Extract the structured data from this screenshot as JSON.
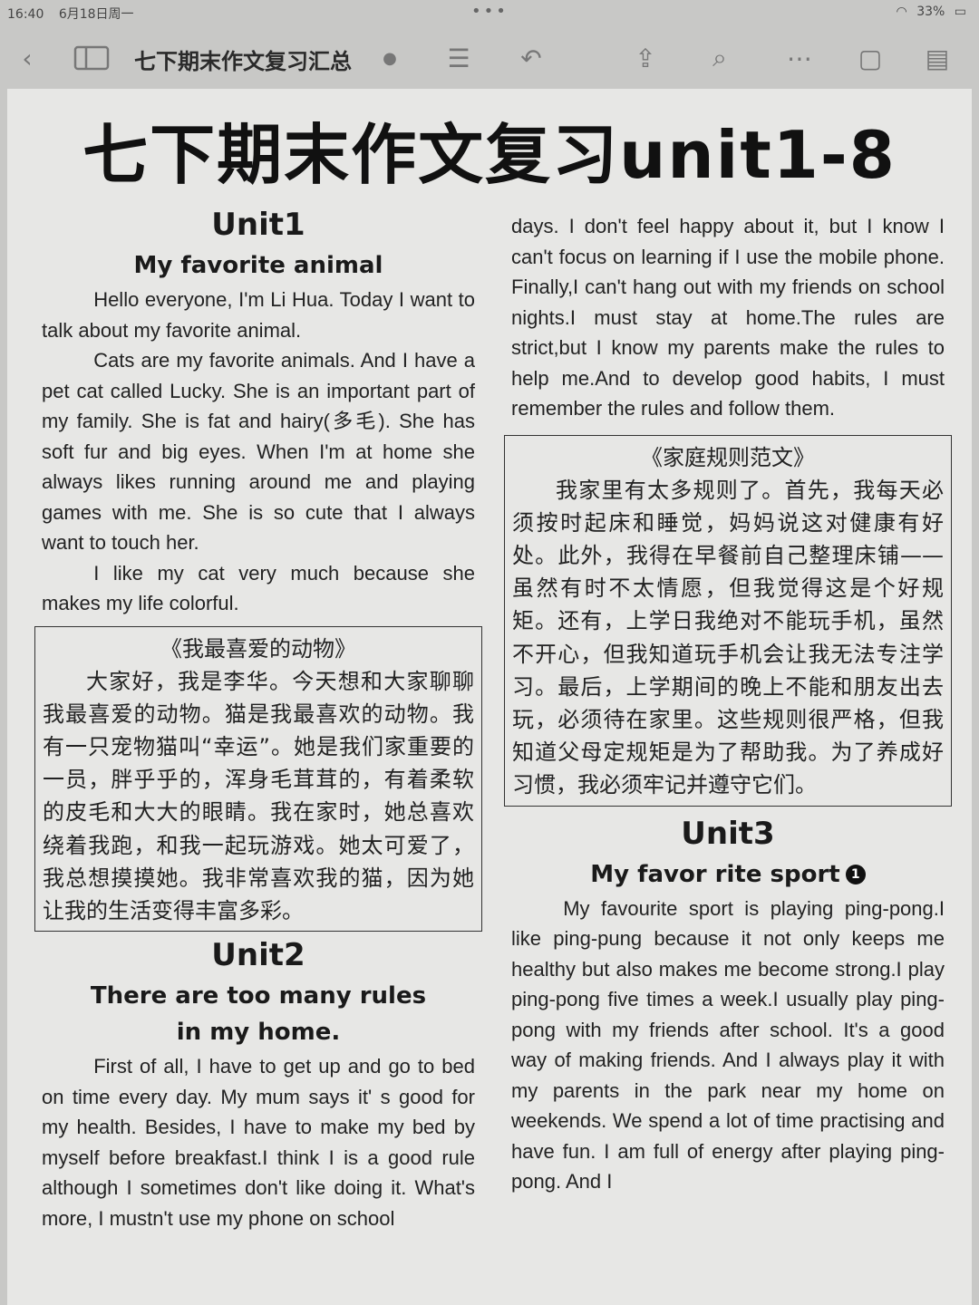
{
  "status_bar": {
    "time": "16:40",
    "date": "6月18日周一",
    "battery": "33%"
  },
  "toolbar": {
    "doc_title": "七下期末作文复习汇总",
    "icons": [
      "back-icon",
      "sidebar-icon",
      "list-icon",
      "undo-icon",
      "share-icon",
      "search-icon",
      "more-icon",
      "pages-icon",
      "notes-icon"
    ]
  },
  "page": {
    "main_title": "七下期末作文复习unit1-8",
    "unit1": {
      "heading": "Unit1",
      "title": "My favorite animal",
      "paragraphs": [
        "Hello everyone, I'm Li Hua. Today I want to talk about my favorite animal.",
        "Cats are my favorite animals. And I have a pet cat called Lucky. She is an important part of my family. She is fat and hairy(多毛). She has soft fur and big eyes. When I'm at home she always likes running around me and playing games with me. She is so cute that I always want to touch her.",
        "I like my cat very much because she makes my life colorful."
      ],
      "zh_title": "《我最喜爱的动物》",
      "zh_text": "大家好，我是李华。今天想和大家聊聊我最喜爱的动物。猫是我最喜欢的动物。我有一只宠物猫叫“幸运”。她是我们家重要的一员，胖乎乎的，浑身毛茸茸的，有着柔软的皮毛和大大的眼睛。我在家时，她总喜欢绕着我跑，和我一起玩游戏。她太可爱了，我总想摸摸她。我非常喜欢我的猫，因为她让我的生活变得丰富多彩。"
    },
    "unit2": {
      "heading": "Unit2",
      "title_line1": "There are too many rules",
      "title_line2": "in my home.",
      "para_left": "First of all, I have to get up and go to bed on time every day. My mum says it' s good for my health. Besides, I have to make my bed by myself before breakfast.I think I is a good rule although I sometimes don't like doing it. What's more, I mustn't use my phone on school",
      "para_right": "days. I don't feel happy about it, but I know I can't focus on learning if I use the mobile phone. Finally,I can't hang out with my friends on school nights.I must stay at home.The rules are strict,but I know my parents make the rules to help me.And to develop good habits, I must remember the rules and follow them.",
      "zh_title": "《家庭规则范文》",
      "zh_text": "我家里有太多规则了。首先，我每天必须按时起床和睡觉，妈妈说这对健康有好处。此外，我得在早餐前自己整理床铺——虽然有时不太情愿，但我觉得这是个好规矩。还有，上学日我绝对不能玩手机，虽然不开心，但我知道玩手机会让我无法专注学习。最后，上学期间的晚上不能和朋友出去玩，必须待在家里。这些规则很严格，但我知道父母定规矩是为了帮助我。为了养成好习惯，我必须牢记并遵守它们。"
    },
    "unit3": {
      "heading": "Unit3",
      "title": "My favor rite sport",
      "badge": "1",
      "paragraph": "My favourite sport is playing ping-pong.I like ping-pung because it not only keeps me healthy but also makes me become strong.I play ping-pong five times a week.I usually play ping-pong with my friends after school. It's a good way of making friends. And I always play it with my parents in the park near my home on weekends. We spend a lot of time practising and have fun. I am full of energy after playing ping-pong. And I"
    }
  }
}
